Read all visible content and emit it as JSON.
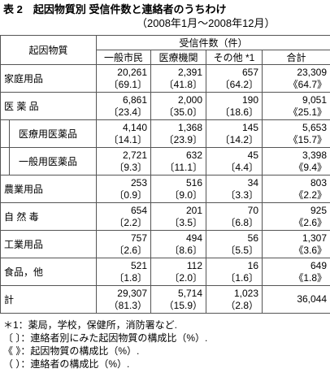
{
  "header": {
    "title": "表 2　起因物質別 受信件数と連絡者のうちわけ",
    "period": "（2008年1月～2008年12月）"
  },
  "table": {
    "row_header": "起因物質",
    "group_header": "受信件数（件）",
    "columns": [
      "一般市民",
      "医療機関",
      "その他 *1",
      "合計"
    ],
    "rows": [
      {
        "label": "家庭用品",
        "cells": [
          [
            "20,261",
            "〔69.1〕"
          ],
          [
            "2,391",
            "〔41.8〕"
          ],
          [
            "657",
            "〔64.2〕"
          ],
          [
            "23,309",
            "《64.7》"
          ]
        ]
      },
      {
        "label": "医 薬 品",
        "cells": [
          [
            "6,861",
            "〔23.4〕"
          ],
          [
            "2,000",
            "〔35.0〕"
          ],
          [
            "190",
            "〔18.6〕"
          ],
          [
            "9,051",
            "《25.1》"
          ]
        ]
      },
      {
        "label": "医療用医薬品",
        "cells": [
          [
            "4,140",
            "〔14.1〕"
          ],
          [
            "1,368",
            "〔23.9〕"
          ],
          [
            "145",
            "〔14.2〕"
          ],
          [
            "5,653",
            "《15.7》"
          ]
        ]
      },
      {
        "label": "一般用医薬品",
        "cells": [
          [
            "2,721",
            "〔9.3〕"
          ],
          [
            "632",
            "〔11.1〕"
          ],
          [
            "45",
            "〔4.4〕"
          ],
          [
            "3,398",
            "《9.4》"
          ]
        ]
      },
      {
        "label": "農業用品",
        "cells": [
          [
            "253",
            "〔0.9〕"
          ],
          [
            "516",
            "〔9.0〕"
          ],
          [
            "34",
            "〔3.3〕"
          ],
          [
            "803",
            "《2.2》"
          ]
        ]
      },
      {
        "label": "自 然 毒",
        "cells": [
          [
            "654",
            "〔2.2〕"
          ],
          [
            "201",
            "〔3.5〕"
          ],
          [
            "70",
            "〔6.8〕"
          ],
          [
            "925",
            "《2.6》"
          ]
        ]
      },
      {
        "label": "工業用品",
        "cells": [
          [
            "757",
            "〔2.6〕"
          ],
          [
            "494",
            "〔8.6〕"
          ],
          [
            "56",
            "〔5.5〕"
          ],
          [
            "1,307",
            "《3.6》"
          ]
        ]
      },
      {
        "label": "食品，他",
        "cells": [
          [
            "521",
            "〔1.8〕"
          ],
          [
            "112",
            "〔2.0〕"
          ],
          [
            "16",
            "〔1.6〕"
          ],
          [
            "649",
            "《1.8》"
          ]
        ]
      },
      {
        "label": "計",
        "cells": [
          [
            "29,307",
            "（81.3）"
          ],
          [
            "5,714",
            "（15.9）"
          ],
          [
            "1,023",
            "（2.8）"
          ],
          [
            "36,044"
          ]
        ]
      }
    ]
  },
  "footnotes": [
    "＊1：薬局，学校，保健所，消防署など.",
    "〔 〕：連絡者別にみた起因物質の構成比（%）.",
    "《 》：起因物質の構成比（%）.",
    "（ ）：連絡者の構成比（%）."
  ]
}
